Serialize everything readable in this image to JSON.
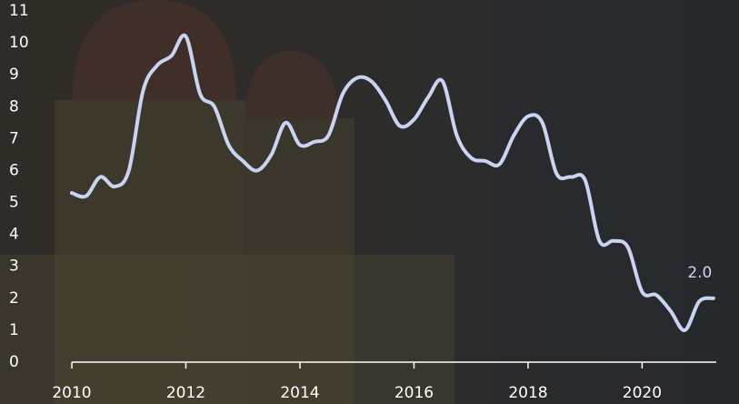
{
  "chart_data": {
    "type": "line",
    "x": [
      2010,
      2010.25,
      2010.5,
      2010.75,
      2011,
      2011.25,
      2011.5,
      2011.75,
      2012,
      2012.25,
      2012.5,
      2012.75,
      2013,
      2013.25,
      2013.5,
      2013.75,
      2014,
      2014.25,
      2014.5,
      2014.75,
      2015,
      2015.25,
      2015.5,
      2015.75,
      2016,
      2016.25,
      2016.5,
      2016.75,
      2017,
      2017.25,
      2017.5,
      2017.75,
      2018,
      2018.25,
      2018.5,
      2018.75,
      2019,
      2019.25,
      2019.5,
      2019.75,
      2020,
      2020.25,
      2020.5,
      2020.75,
      2021,
      2021.25
    ],
    "series": [
      {
        "color": "#c9d3f2",
        "values": [
          5.3,
          5.2,
          5.8,
          5.5,
          6.0,
          8.5,
          9.3,
          9.6,
          10.2,
          8.4,
          8.0,
          6.8,
          6.3,
          6.0,
          6.5,
          7.5,
          6.8,
          6.9,
          7.1,
          8.4,
          8.9,
          8.8,
          8.2,
          7.4,
          7.6,
          8.3,
          8.8,
          7.1,
          6.4,
          6.3,
          6.2,
          7.1,
          7.7,
          7.5,
          5.9,
          5.8,
          5.7,
          3.8,
          3.8,
          3.6,
          2.2,
          2.1,
          1.6,
          1.0,
          1.9,
          2.0
        ],
        "value_labels": [
          null,
          null,
          null,
          null,
          null,
          null,
          null,
          null,
          null,
          null,
          null,
          null,
          null,
          null,
          null,
          null,
          null,
          null,
          null,
          null,
          null,
          null,
          null,
          null,
          null,
          null,
          null,
          null,
          null,
          null,
          null,
          null,
          null,
          null,
          null,
          null,
          null,
          null,
          null,
          null,
          null,
          null,
          null,
          null,
          null,
          "2.0"
        ]
      }
    ],
    "xlim": [
      2010,
      2021.3
    ],
    "xticks": [
      2010,
      2012,
      2014,
      2016,
      2018,
      2020
    ],
    "ylim": [
      0,
      11
    ],
    "yticks": [
      0,
      1,
      2,
      3,
      4,
      5,
      6,
      7,
      8,
      9,
      10,
      11
    ]
  }
}
